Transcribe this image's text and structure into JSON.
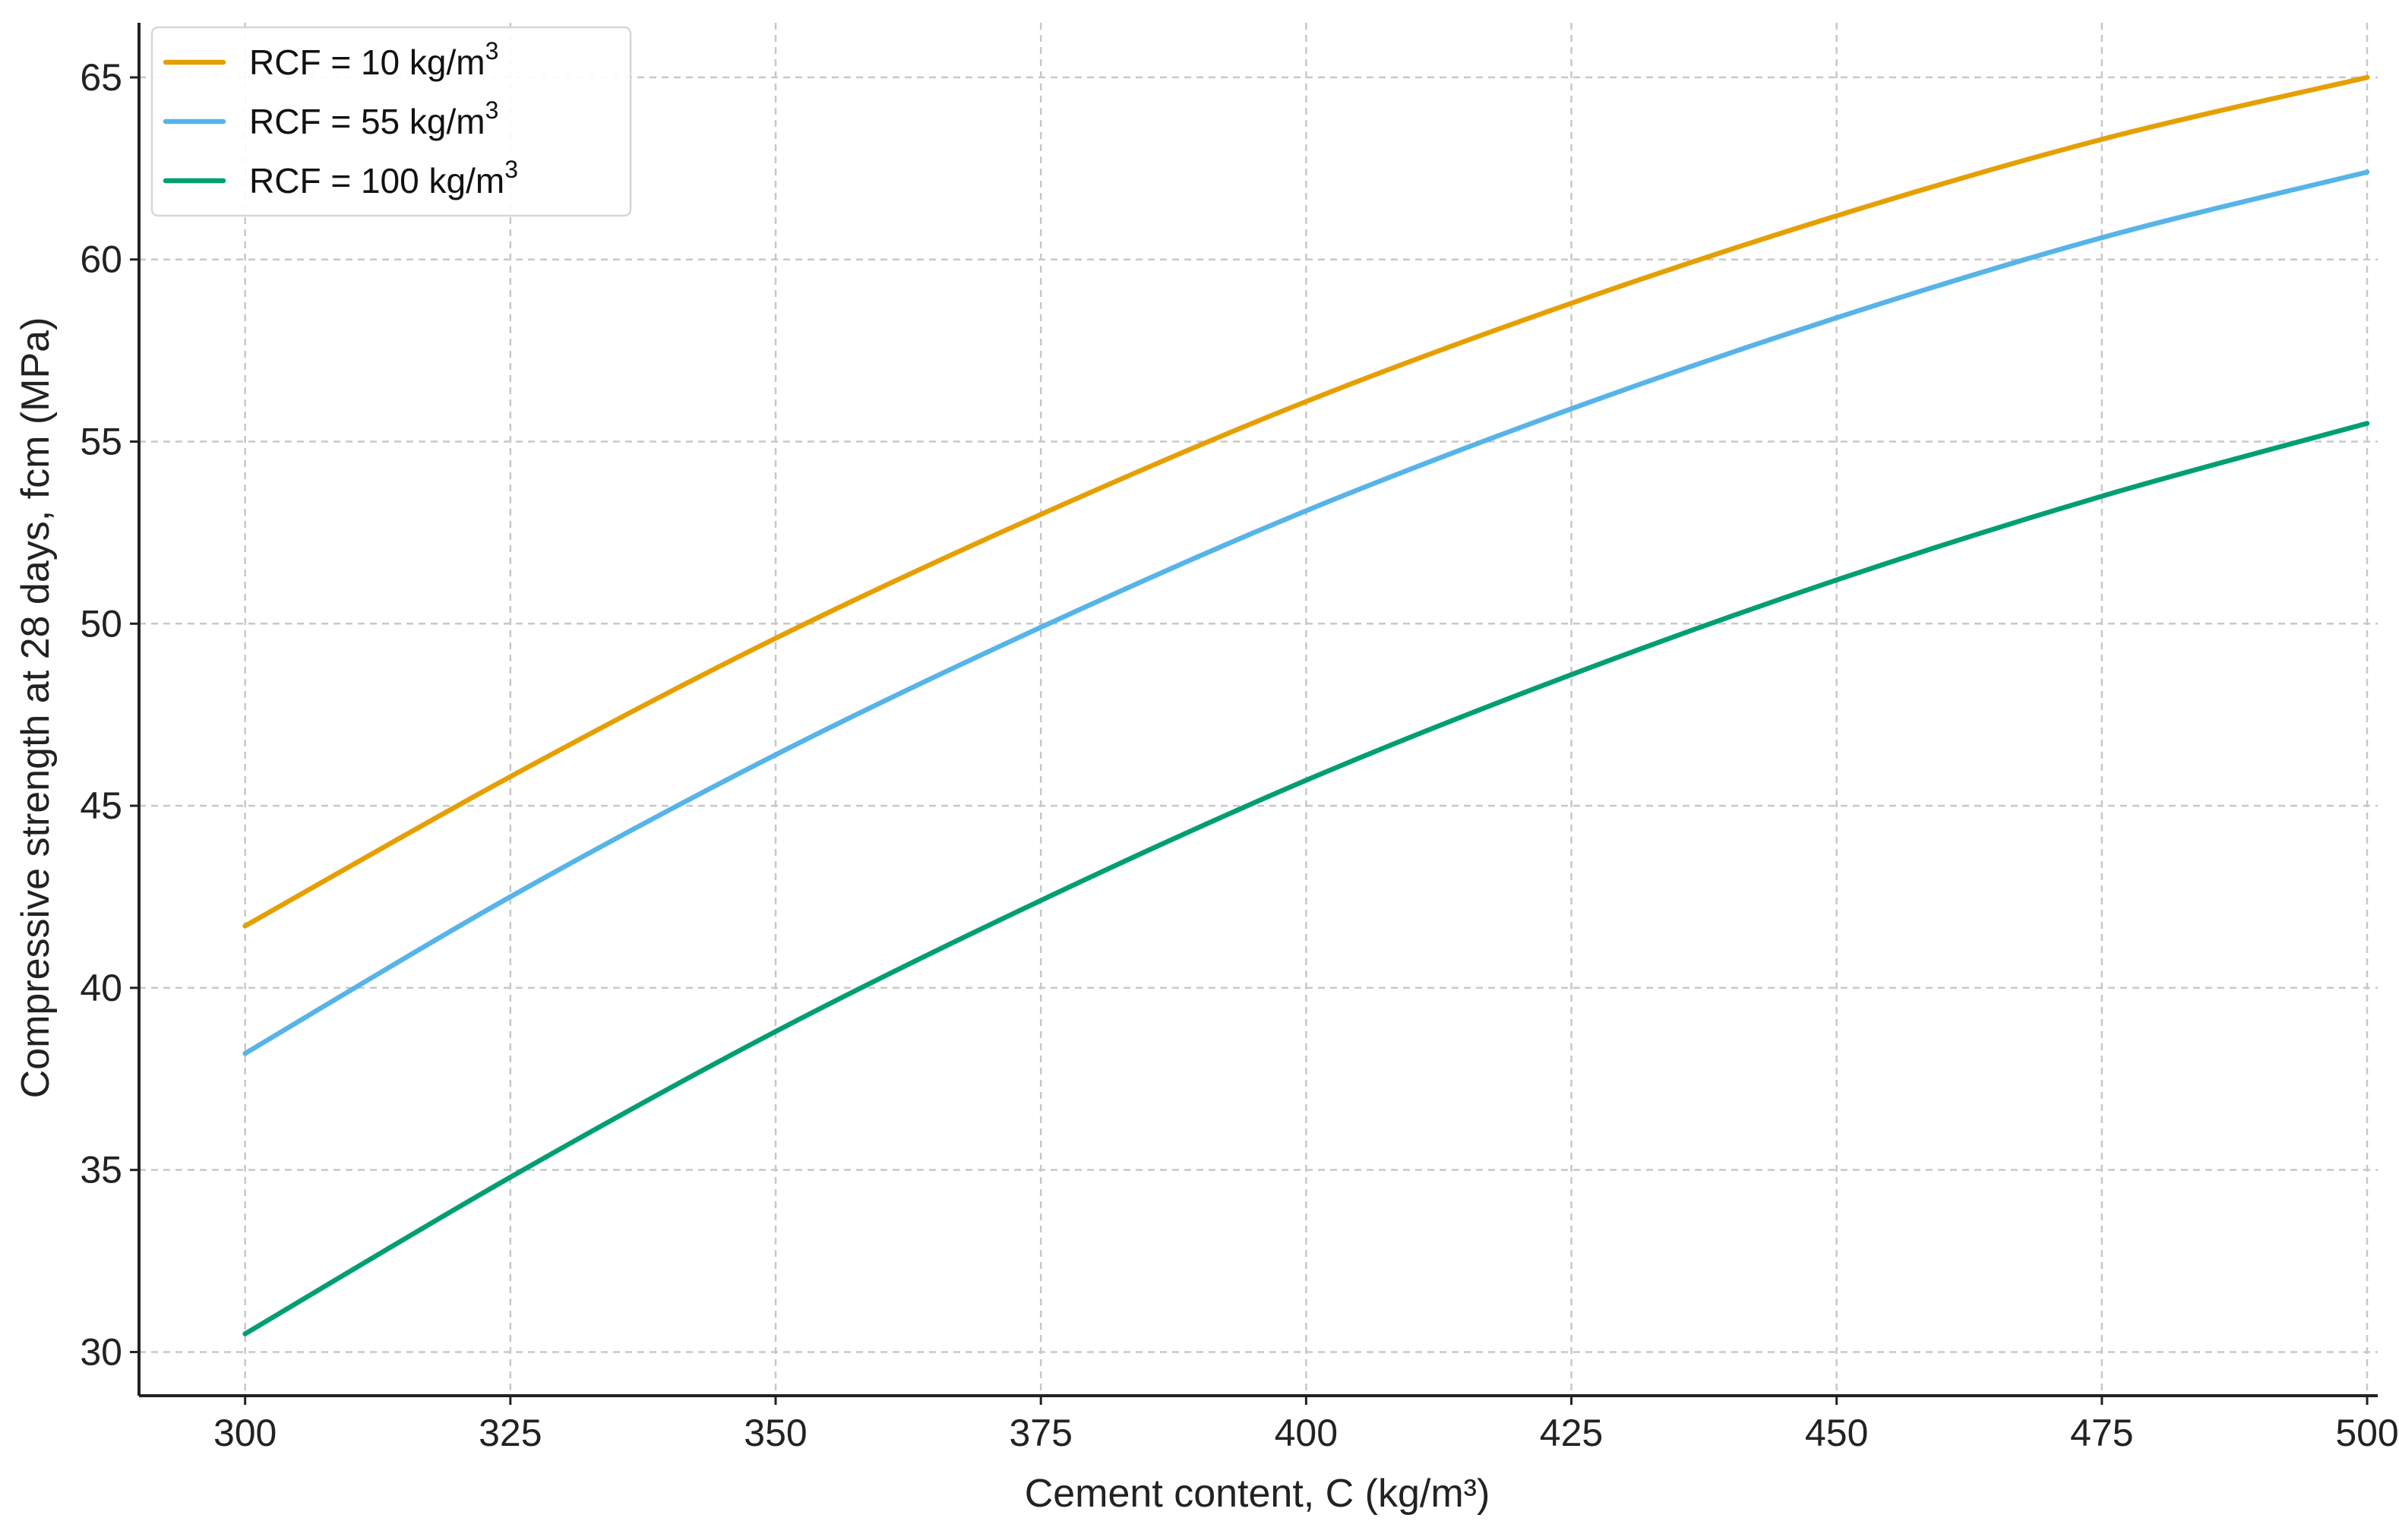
{
  "chart_data": {
    "type": "line",
    "title": "",
    "xlabel": "Cement content, C (kg/m³)",
    "ylabel": "Compressive strength at 28 days, fcm (MPa)",
    "xlim": [
      290,
      501
    ],
    "ylim": [
      28.8,
      66.5
    ],
    "xticks": [
      300,
      325,
      350,
      375,
      400,
      425,
      450,
      475,
      500
    ],
    "yticks": [
      30,
      35,
      40,
      45,
      50,
      55,
      60,
      65
    ],
    "grid": true,
    "legend_position": "top-left",
    "x": [
      300,
      325,
      350,
      375,
      400,
      425,
      450,
      475,
      500
    ],
    "series": [
      {
        "name": "RCF = 10 kg/m",
        "superscript": "3",
        "color": "#E69F00",
        "values": [
          41.7,
          45.8,
          49.6,
          53.0,
          56.1,
          58.8,
          61.2,
          63.3,
          65.0
        ]
      },
      {
        "name": "RCF = 55 kg/m",
        "superscript": "3",
        "color": "#56B4E9",
        "values": [
          38.2,
          42.5,
          46.4,
          49.9,
          53.1,
          55.9,
          58.4,
          60.6,
          62.4
        ]
      },
      {
        "name": "RCF = 100 kg/m",
        "superscript": "3",
        "color": "#009E73",
        "values": [
          30.5,
          34.8,
          38.8,
          42.4,
          45.7,
          48.6,
          51.2,
          53.5,
          55.5
        ]
      }
    ]
  }
}
